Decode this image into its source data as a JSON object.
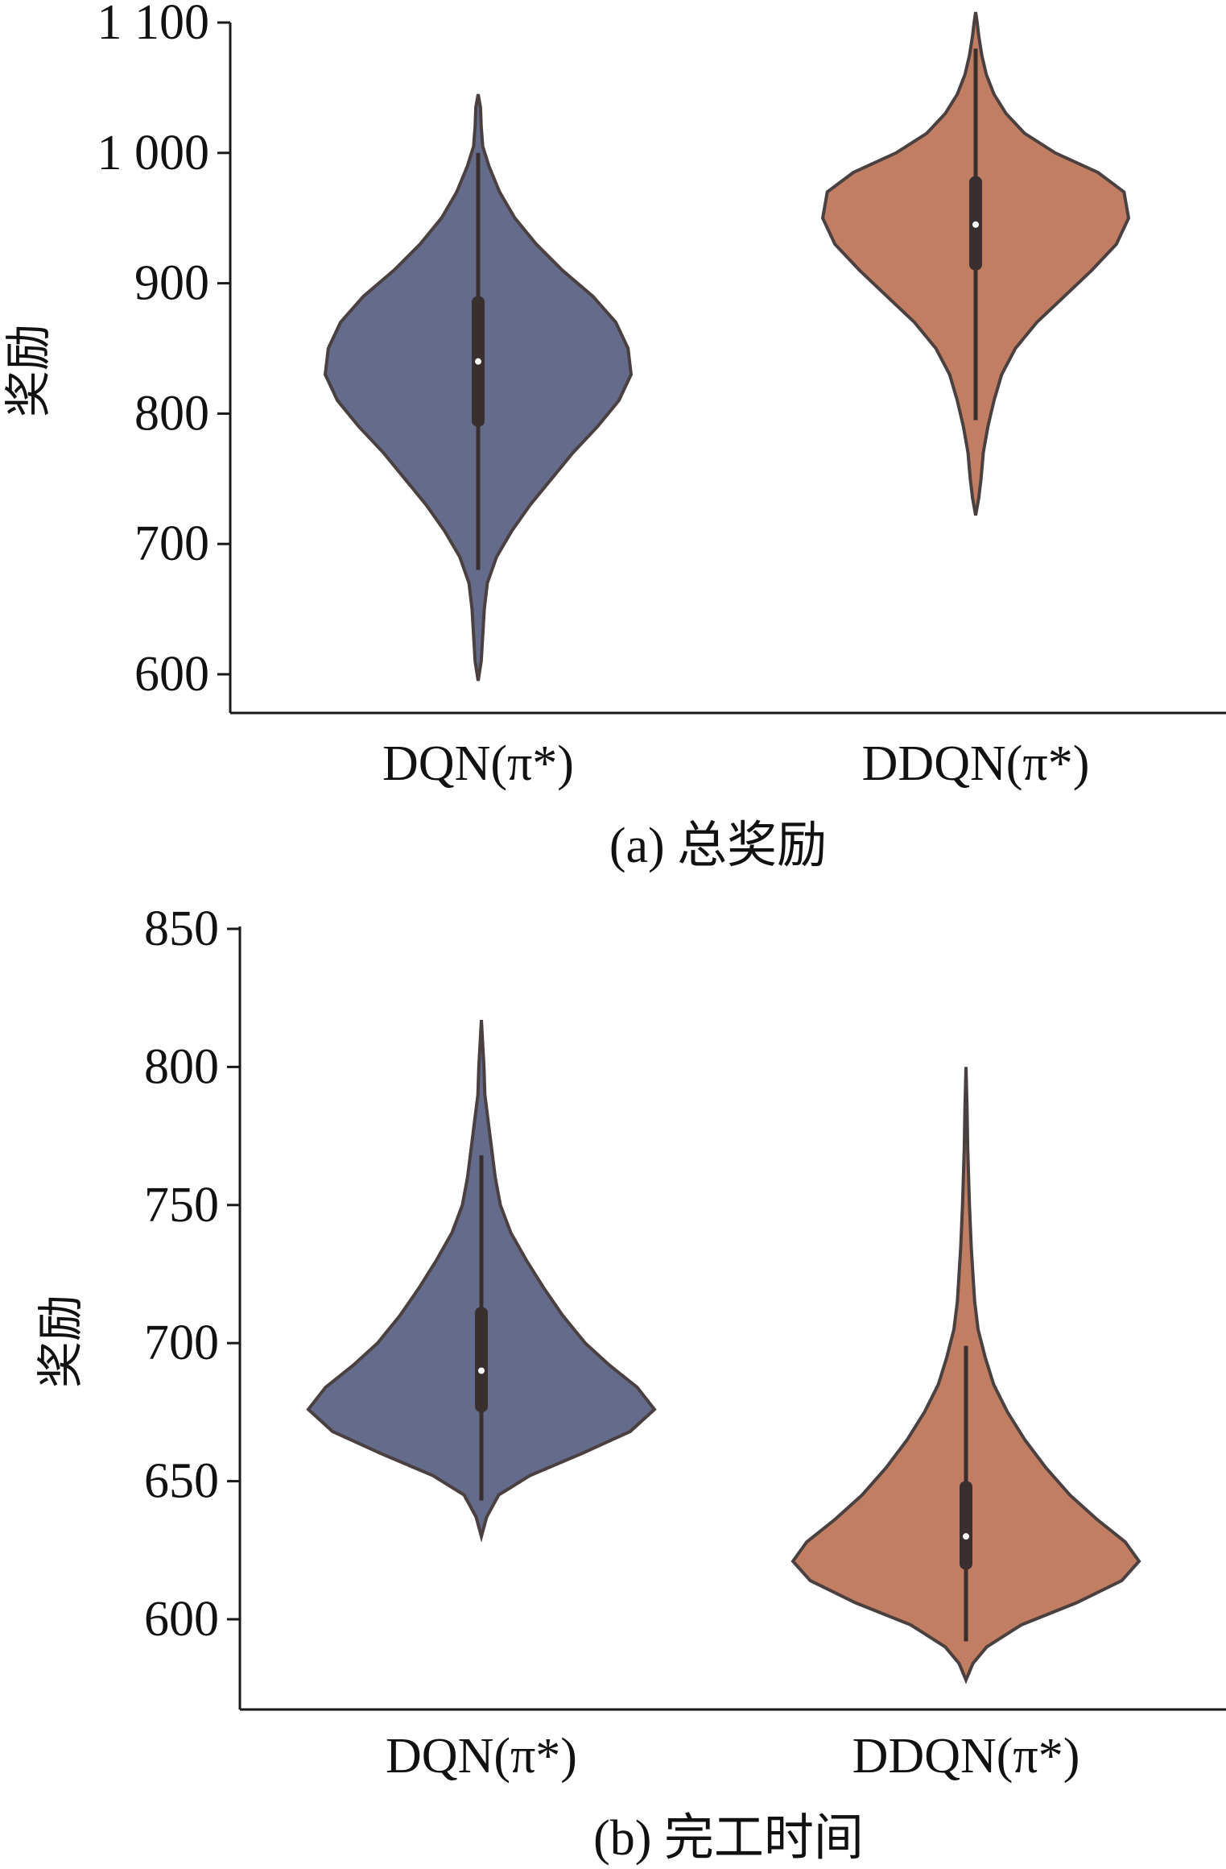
{
  "chart_data": [
    {
      "type": "violin",
      "caption": "(a) 总奖励",
      "ylabel": "奖励",
      "ylim": [
        570,
        1100
      ],
      "yticks": [
        600,
        700,
        800,
        900,
        1000,
        1100
      ],
      "ytick_labels": [
        "600",
        "700",
        "800",
        "900",
        "1 000",
        "1 100"
      ],
      "categories": [
        "DQN(π*)",
        "DDQN(π*)"
      ],
      "series": [
        {
          "color": "#646b8b",
          "stats": {
            "min": 680,
            "q1": 790,
            "median": 840,
            "q3": 890,
            "max": 1000
          },
          "data_range": [
            595,
            1045
          ],
          "density": [
            [
              595,
              0.0
            ],
            [
              610,
              0.02
            ],
            [
              630,
              0.03
            ],
            [
              650,
              0.04
            ],
            [
              670,
              0.06
            ],
            [
              690,
              0.12
            ],
            [
              710,
              0.22
            ],
            [
              730,
              0.34
            ],
            [
              750,
              0.48
            ],
            [
              770,
              0.62
            ],
            [
              790,
              0.78
            ],
            [
              810,
              0.92
            ],
            [
              830,
              1.0
            ],
            [
              850,
              0.98
            ],
            [
              870,
              0.9
            ],
            [
              890,
              0.75
            ],
            [
              910,
              0.55
            ],
            [
              930,
              0.38
            ],
            [
              950,
              0.24
            ],
            [
              970,
              0.14
            ],
            [
              990,
              0.07
            ],
            [
              1005,
              0.03
            ],
            [
              1020,
              0.02
            ],
            [
              1035,
              0.015
            ],
            [
              1045,
              0.0
            ]
          ]
        },
        {
          "color": "#c27e62",
          "stats": {
            "min": 795,
            "q1": 910,
            "median": 945,
            "q3": 982,
            "max": 1080
          },
          "data_range": [
            722,
            1108
          ],
          "density": [
            [
              722,
              0.0
            ],
            [
              735,
              0.02
            ],
            [
              750,
              0.035
            ],
            [
              770,
              0.05
            ],
            [
              790,
              0.08
            ],
            [
              810,
              0.12
            ],
            [
              830,
              0.17
            ],
            [
              850,
              0.26
            ],
            [
              870,
              0.4
            ],
            [
              890,
              0.58
            ],
            [
              910,
              0.76
            ],
            [
              930,
              0.92
            ],
            [
              950,
              1.0
            ],
            [
              970,
              0.97
            ],
            [
              985,
              0.8
            ],
            [
              1000,
              0.52
            ],
            [
              1015,
              0.32
            ],
            [
              1030,
              0.2
            ],
            [
              1045,
              0.12
            ],
            [
              1060,
              0.07
            ],
            [
              1075,
              0.04
            ],
            [
              1090,
              0.02
            ],
            [
              1100,
              0.01
            ],
            [
              1108,
              0.0
            ]
          ]
        }
      ]
    },
    {
      "type": "violin",
      "caption": "(b) 完工时间",
      "ylabel": "奖励",
      "ylim": [
        565,
        850
      ],
      "yticks": [
        600,
        650,
        700,
        750,
        800,
        850
      ],
      "ytick_labels": [
        "600",
        "650",
        "700",
        "750",
        "800",
        "850"
      ],
      "categories": [
        "DQN(π*)",
        "DDQN(π*)"
      ],
      "series": [
        {
          "color": "#646b8b",
          "stats": {
            "min": 643,
            "q1": 675,
            "median": 690,
            "q3": 713,
            "max": 768
          },
          "data_range": [
            630,
            817
          ],
          "density": [
            [
              630,
              0.0
            ],
            [
              637,
              0.03
            ],
            [
              645,
              0.1
            ],
            [
              652,
              0.28
            ],
            [
              660,
              0.58
            ],
            [
              668,
              0.86
            ],
            [
              676,
              1.0
            ],
            [
              684,
              0.9
            ],
            [
              692,
              0.74
            ],
            [
              700,
              0.6
            ],
            [
              710,
              0.47
            ],
            [
              720,
              0.36
            ],
            [
              730,
              0.26
            ],
            [
              740,
              0.17
            ],
            [
              750,
              0.11
            ],
            [
              760,
              0.08
            ],
            [
              770,
              0.06
            ],
            [
              780,
              0.04
            ],
            [
              790,
              0.02
            ],
            [
              800,
              0.015
            ],
            [
              817,
              0.0
            ]
          ]
        },
        {
          "color": "#c27e62",
          "stats": {
            "min": 592,
            "q1": 618,
            "median": 630,
            "q3": 650,
            "max": 699
          },
          "data_range": [
            578,
            800
          ],
          "density": [
            [
              578,
              0.0
            ],
            [
              584,
              0.04
            ],
            [
              590,
              0.12
            ],
            [
              598,
              0.32
            ],
            [
              606,
              0.64
            ],
            [
              614,
              0.9
            ],
            [
              621,
              1.0
            ],
            [
              628,
              0.92
            ],
            [
              636,
              0.76
            ],
            [
              645,
              0.6
            ],
            [
              655,
              0.46
            ],
            [
              665,
              0.34
            ],
            [
              675,
              0.24
            ],
            [
              685,
              0.16
            ],
            [
              695,
              0.11
            ],
            [
              705,
              0.07
            ],
            [
              715,
              0.05
            ],
            [
              725,
              0.04
            ],
            [
              735,
              0.03
            ],
            [
              750,
              0.02
            ],
            [
              770,
              0.01
            ],
            [
              785,
              0.006
            ],
            [
              800,
              0.0
            ]
          ]
        }
      ]
    }
  ]
}
